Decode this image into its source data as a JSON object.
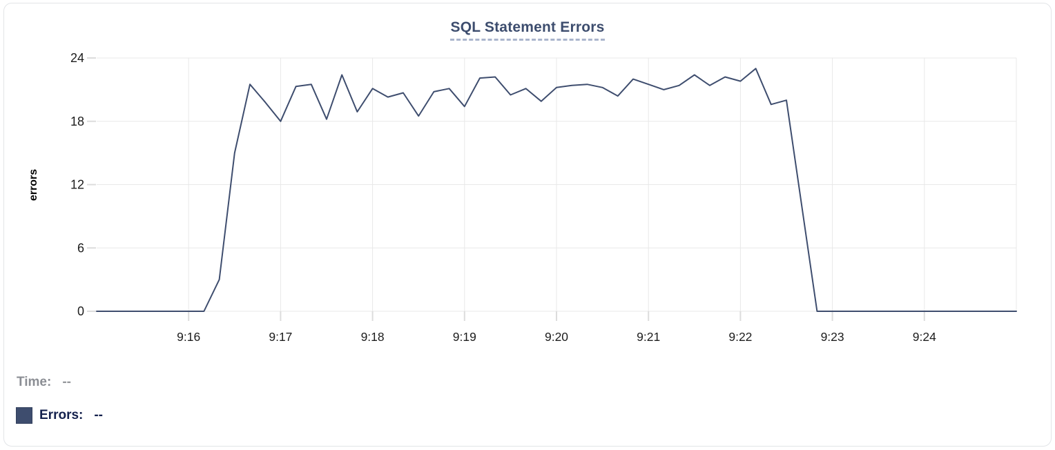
{
  "chart_data": {
    "type": "line",
    "title": "SQL Statement Errors",
    "xlabel": "",
    "ylabel": "errors",
    "x_start": "9:15:00",
    "x_end": "9:25:00",
    "x_tick_labels": [
      "9:16",
      "9:17",
      "9:18",
      "9:19",
      "9:20",
      "9:21",
      "9:22",
      "9:23",
      "9:24"
    ],
    "y_ticks": [
      0,
      6,
      12,
      18,
      24
    ],
    "ylim": [
      0,
      24
    ],
    "grid": true,
    "legend_position": "bottom-left",
    "series": [
      {
        "name": "Errors",
        "color": "#3e4d6e",
        "points": [
          [
            "9:15:00",
            0
          ],
          [
            "9:15:10",
            0
          ],
          [
            "9:15:20",
            0
          ],
          [
            "9:15:30",
            0
          ],
          [
            "9:15:40",
            0
          ],
          [
            "9:15:50",
            0
          ],
          [
            "9:16:00",
            0
          ],
          [
            "9:16:10",
            0
          ],
          [
            "9:16:20",
            3
          ],
          [
            "9:16:30",
            15
          ],
          [
            "9:16:40",
            21.5
          ],
          [
            "9:16:50",
            19.8
          ],
          [
            "9:17:00",
            18
          ],
          [
            "9:17:10",
            21.3
          ],
          [
            "9:17:20",
            21.5
          ],
          [
            "9:17:30",
            18.2
          ],
          [
            "9:17:40",
            22.4
          ],
          [
            "9:17:50",
            18.9
          ],
          [
            "9:18:00",
            21.1
          ],
          [
            "9:18:10",
            20.3
          ],
          [
            "9:18:20",
            20.7
          ],
          [
            "9:18:30",
            18.5
          ],
          [
            "9:18:40",
            20.8
          ],
          [
            "9:18:50",
            21.1
          ],
          [
            "9:19:00",
            19.4
          ],
          [
            "9:19:10",
            22.1
          ],
          [
            "9:19:20",
            22.2
          ],
          [
            "9:19:30",
            20.5
          ],
          [
            "9:19:40",
            21.1
          ],
          [
            "9:19:50",
            19.9
          ],
          [
            "9:20:00",
            21.2
          ],
          [
            "9:20:10",
            21.4
          ],
          [
            "9:20:20",
            21.5
          ],
          [
            "9:20:30",
            21.2
          ],
          [
            "9:20:40",
            20.4
          ],
          [
            "9:20:50",
            22
          ],
          [
            "9:21:00",
            21.5
          ],
          [
            "9:21:10",
            21
          ],
          [
            "9:21:20",
            21.4
          ],
          [
            "9:21:30",
            22.4
          ],
          [
            "9:21:40",
            21.4
          ],
          [
            "9:21:50",
            22.2
          ],
          [
            "9:22:00",
            21.8
          ],
          [
            "9:22:10",
            23
          ],
          [
            "9:22:20",
            19.6
          ],
          [
            "9:22:30",
            20
          ],
          [
            "9:22:40",
            10
          ],
          [
            "9:22:50",
            0
          ],
          [
            "9:23:00",
            0
          ],
          [
            "9:23:10",
            0
          ],
          [
            "9:23:20",
            0
          ],
          [
            "9:23:30",
            0
          ],
          [
            "9:23:40",
            0
          ],
          [
            "9:23:50",
            0
          ],
          [
            "9:24:00",
            0
          ],
          [
            "9:24:10",
            0
          ],
          [
            "9:24:20",
            0
          ],
          [
            "9:24:30",
            0
          ],
          [
            "9:24:40",
            0
          ],
          [
            "9:24:50",
            0
          ],
          [
            "9:25:00",
            0
          ]
        ]
      }
    ]
  },
  "readout": {
    "time_label": "Time:",
    "time_value": "--",
    "errors_label": "Errors:",
    "errors_value": "--",
    "errors_swatch_color": "#3e4d6e"
  },
  "colors": {
    "line": "#3e4d6e",
    "title": "#3d4d6e",
    "title_underline": "#a9b4cc",
    "grid": "#e8e8e8",
    "tick": "#dcdcdc",
    "axis_text": "#1c1c1c",
    "time_label_text": "#8b8e94",
    "errors_label_text": "#14214d",
    "card_border": "#e2e4e7"
  }
}
